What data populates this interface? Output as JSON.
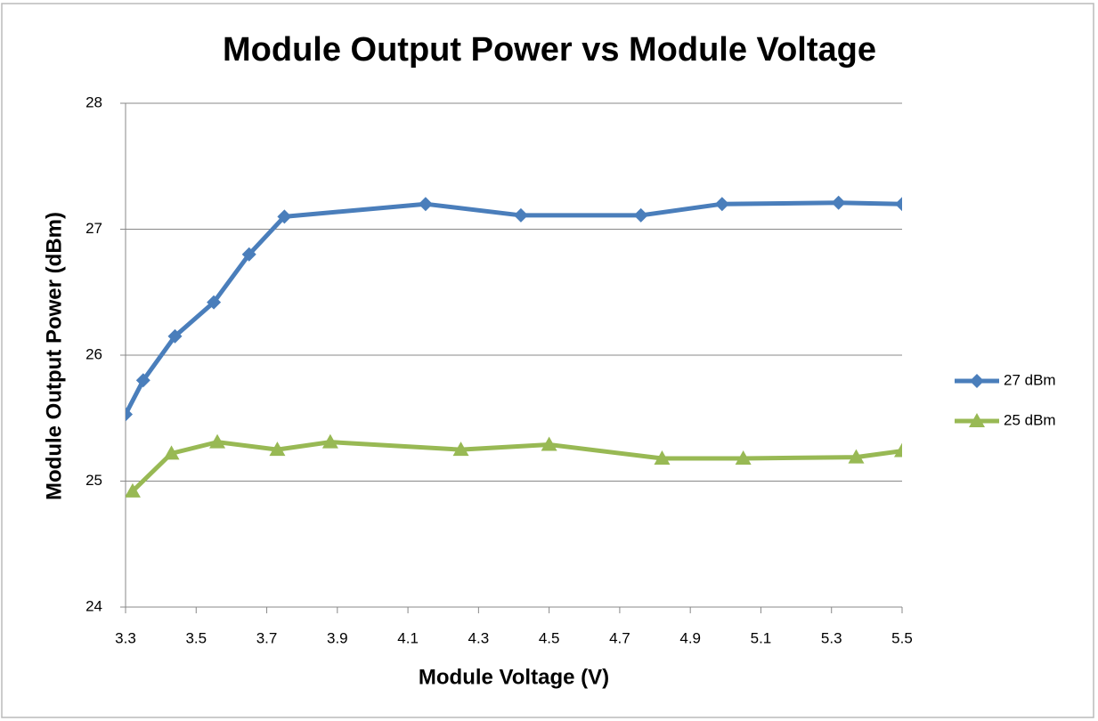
{
  "chart_data": {
    "type": "line",
    "title": "Module Output Power vs Module Voltage",
    "x_label": "Module Voltage (V)",
    "y_label": "Module Output Power (dBm)",
    "xlim": [
      3.3,
      5.5
    ],
    "xticks": [
      3.3,
      3.5,
      3.7,
      3.9,
      4.1,
      4.3,
      4.5,
      4.7,
      4.9,
      5.1,
      5.3,
      5.5
    ],
    "ylim": [
      24,
      28
    ],
    "yticks": [
      24,
      25,
      26,
      27,
      28
    ],
    "grid": true,
    "legend": "right",
    "series": [
      {
        "name": "27 dBm",
        "color": "#4a7ebb",
        "marker": "diamond",
        "x": [
          3.3,
          3.35,
          3.44,
          3.55,
          3.65,
          3.75,
          4.15,
          4.42,
          4.76,
          4.99,
          5.32,
          5.5
        ],
        "values": [
          25.53,
          25.8,
          26.15,
          26.42,
          26.8,
          27.1,
          27.2,
          27.11,
          27.11,
          27.2,
          27.21,
          27.2
        ]
      },
      {
        "name": "25 dBm",
        "color": "#98b954",
        "marker": "triangle",
        "x": [
          3.32,
          3.43,
          3.56,
          3.73,
          3.88,
          4.25,
          4.5,
          4.82,
          5.05,
          5.37,
          5.5
        ],
        "values": [
          24.92,
          25.22,
          25.31,
          25.25,
          25.31,
          25.25,
          25.29,
          25.18,
          25.18,
          25.19,
          25.24
        ]
      }
    ]
  }
}
